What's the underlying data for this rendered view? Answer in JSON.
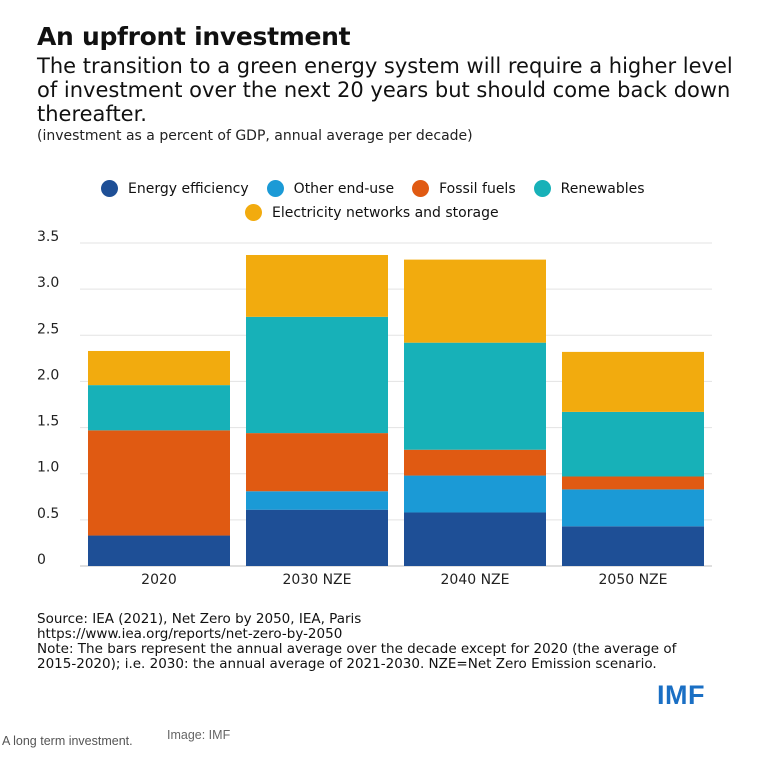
{
  "header": {
    "title": "An upfront investment",
    "subtitle": "The transition to a green energy system will require a higher level of investment over the next 20 years but should come back down thereafter.",
    "units": "(investment as a percent of GDP, annual average per decade)"
  },
  "chart_data": {
    "type": "bar",
    "stacked": true,
    "categories": [
      "2020",
      "2030 NZE",
      "2040 NZE",
      "2050 NZE"
    ],
    "series": [
      {
        "name": "Energy efficiency",
        "color": "#1e4f96",
        "values": [
          0.33,
          0.61,
          0.58,
          0.43
        ]
      },
      {
        "name": "Other end-use",
        "color": "#1b9ad6",
        "values": [
          0.0,
          0.2,
          0.4,
          0.4
        ]
      },
      {
        "name": "Fossil fuels",
        "color": "#e05a12",
        "values": [
          1.14,
          0.63,
          0.28,
          0.14
        ]
      },
      {
        "name": "Renewables",
        "color": "#17b1b8",
        "values": [
          0.49,
          1.26,
          1.16,
          0.7
        ]
      },
      {
        "name": "Electricity networks and storage",
        "color": "#f2ab0e",
        "values": [
          0.37,
          0.67,
          0.9,
          0.65
        ]
      }
    ],
    "ylim": [
      0,
      3.5
    ],
    "yticks": [
      0,
      0.5,
      1.0,
      1.5,
      2.0,
      2.5,
      3.0,
      3.5
    ],
    "ytick_labels": [
      "0",
      "0.5",
      "1.0",
      "1.5",
      "2.0",
      "2.5",
      "3.0",
      "3.5"
    ],
    "grid": true,
    "legend_position": "top"
  },
  "footer": {
    "source_lines": [
      "Source: IEA (2021), Net Zero by 2050, IEA, Paris",
      "https://www.iea.org/reports/net-zero-by-2050",
      "Note: The bars represent the annual average over the decade except for 2020 (the average of",
      "2015-2020); i.e. 2030: the annual average of 2021-2030. NZE=Net Zero Emission scenario."
    ],
    "logo": "IMF"
  },
  "caption": {
    "text": "A long term investment.",
    "credit": "Image: IMF"
  }
}
